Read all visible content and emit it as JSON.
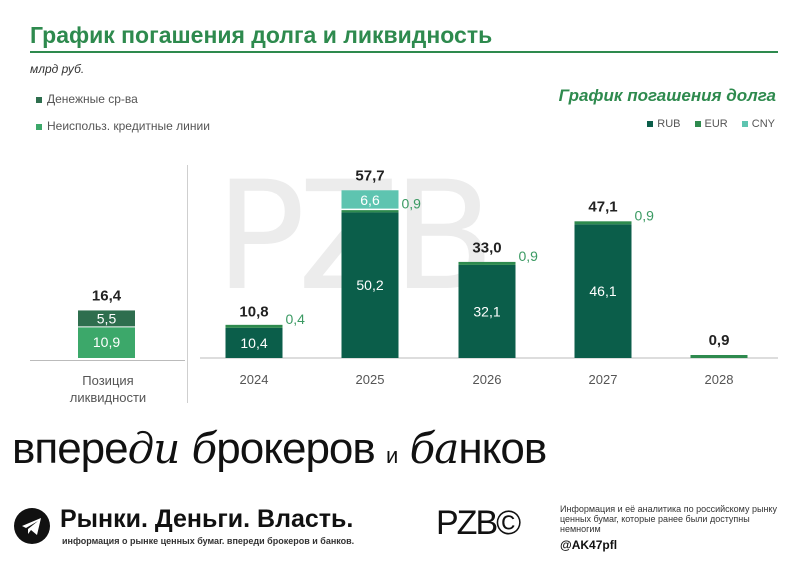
{
  "header": {
    "title": "График погашения долга и ликвидность",
    "unit": "млрд руб."
  },
  "liquidity_legend": [
    {
      "label": "Денежные ср-ва",
      "color": "#2e6e4e"
    },
    {
      "label": "Неиспольз. кредитные линии",
      "color": "#3ca86a"
    }
  ],
  "debt_panel": {
    "title": "График погашения долга",
    "legend": [
      {
        "label": "RUB",
        "color": "#0b5e4a"
      },
      {
        "label": "EUR",
        "color": "#2e8a4e"
      },
      {
        "label": "CNY",
        "color": "#5ec4b0"
      }
    ]
  },
  "chart_data": [
    {
      "type": "bar",
      "stacked": true,
      "categories": [
        "Позиция ликвидности"
      ],
      "series": [
        {
          "name": "Неиспольз. кредитные линии",
          "values": [
            10.9
          ],
          "color": "#3ca86a"
        },
        {
          "name": "Денежные ср-ва",
          "values": [
            5.5
          ],
          "color": "#2e6e4e"
        }
      ],
      "totals": [
        "16,4"
      ],
      "value_labels": [
        [
          "10,9"
        ],
        [
          "5,5"
        ]
      ]
    },
    {
      "type": "bar",
      "stacked": true,
      "title": "График погашения долга",
      "categories": [
        "2024",
        "2025",
        "2026",
        "2027",
        "2028"
      ],
      "series": [
        {
          "name": "RUB",
          "values": [
            10.4,
            50.2,
            32.1,
            46.1,
            0
          ],
          "color": "#0b5e4a"
        },
        {
          "name": "EUR",
          "values": [
            0.4,
            0.9,
            0.9,
            0.9,
            0.9
          ],
          "color": "#2e8a4e"
        },
        {
          "name": "CNY",
          "values": [
            0,
            6.6,
            0,
            0,
            0
          ],
          "color": "#5ec4b0"
        }
      ],
      "totals": [
        "10,8",
        "57,7",
        "33,0",
        "47,1",
        "0,9"
      ],
      "rub_labels": [
        "10,4",
        "50,2",
        "32,1",
        "46,1",
        ""
      ],
      "eur_labels": [
        "0,4",
        "0,9",
        "0,9",
        "0,9",
        ""
      ],
      "cny_labels": [
        "",
        "6,6",
        "",
        "",
        ""
      ]
    }
  ],
  "liquidity_axis_label": "Позиция ликвидности",
  "footer": {
    "slogan_1": "впере",
    "slogan_2": "ди ",
    "slogan_3": "б",
    "slogan_4": "рокеров ",
    "slogan_5": "и",
    "slogan_6": " ба",
    "slogan_7": "нков",
    "brand": "Рынки. Деньги. Власть.",
    "brand_sub": "информация о рынке ценных бумаг. впереди брокеров и банков.",
    "logo": "PZB©",
    "info": "Информация и её аналитика по российскому рынку ценных бумаг, которые ранее были доступны немногим",
    "handle": "@AK47pfl"
  }
}
